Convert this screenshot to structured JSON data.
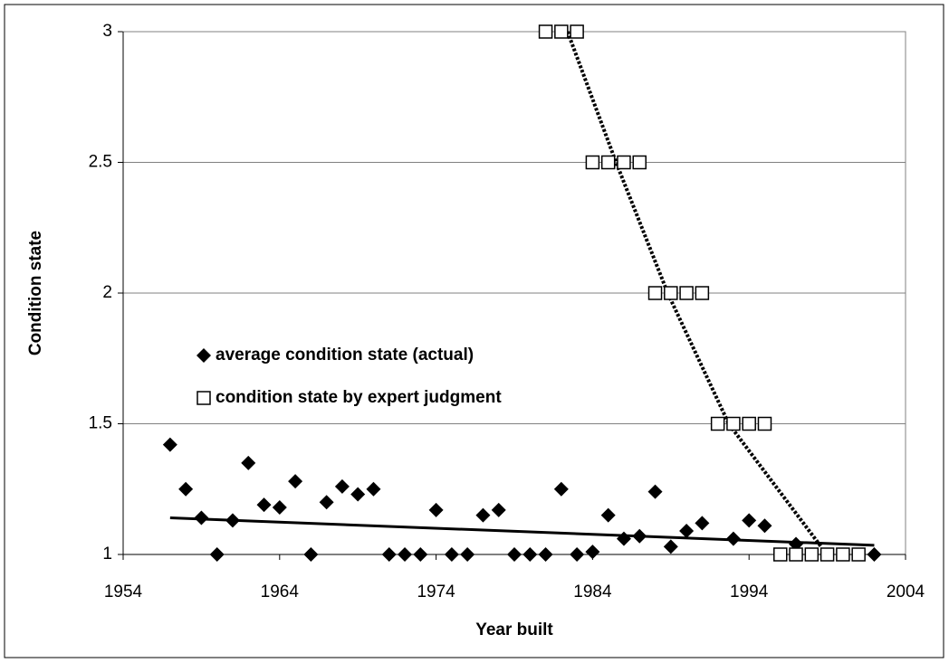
{
  "chart_data": {
    "type": "scatter",
    "xlabel": "Year built",
    "ylabel": "Condition state",
    "xlim": [
      1954,
      2004
    ],
    "xticks": [
      1954,
      1964,
      1974,
      1984,
      1994,
      2004
    ],
    "ylim": [
      1,
      3
    ],
    "yticks": [
      1,
      1.5,
      2,
      2.5,
      3
    ],
    "grid": true,
    "series": [
      {
        "name": "average condition state (actual)",
        "marker": "diamond",
        "color": "#000000",
        "x": [
          1957,
          1958,
          1959,
          1960,
          1961,
          1962,
          1963,
          1964,
          1965,
          1966,
          1967,
          1968,
          1969,
          1970,
          1971,
          1972,
          1973,
          1974,
          1975,
          1976,
          1977,
          1978,
          1979,
          1980,
          1981,
          1982,
          1983,
          1984,
          1985,
          1986,
          1987,
          1988,
          1989,
          1990,
          1991,
          1993,
          1994,
          1995,
          1997,
          2002
        ],
        "values": [
          1.42,
          1.25,
          1.14,
          1.0,
          1.13,
          1.35,
          1.19,
          1.18,
          1.28,
          1.0,
          1.2,
          1.26,
          1.23,
          1.25,
          1.0,
          1.0,
          1.0,
          1.17,
          1.0,
          1.0,
          1.15,
          1.17,
          1.0,
          1.0,
          1.0,
          1.25,
          1.0,
          1.01,
          1.15,
          1.06,
          1.07,
          1.24,
          1.03,
          1.09,
          1.12,
          1.06,
          1.13,
          1.11,
          1.04,
          1.0
        ],
        "trend": {
          "style": "solid",
          "x": [
            1957,
            2002
          ],
          "values": [
            1.14,
            1.035
          ]
        }
      },
      {
        "name": "condition state by expert judgment",
        "marker": "square",
        "color": "#000000",
        "x": [
          1981,
          1982,
          1983,
          1984,
          1985,
          1986,
          1987,
          1988,
          1989,
          1990,
          1991,
          1992,
          1993,
          1994,
          1995,
          1996,
          1997,
          1998,
          1999,
          2000,
          2001
        ],
        "values": [
          3,
          3,
          3,
          2.5,
          2.5,
          2.5,
          2.5,
          2,
          2,
          2,
          2,
          1.5,
          1.5,
          1.5,
          1.5,
          1,
          1,
          1,
          1,
          1,
          1
        ],
        "trend": {
          "style": "dotted",
          "x": [
            1982.4,
            1985.5,
            1988.8,
            1992.7,
            1998.6
          ],
          "values": [
            3,
            2.5,
            2,
            1.5,
            1.03
          ]
        }
      }
    ]
  }
}
